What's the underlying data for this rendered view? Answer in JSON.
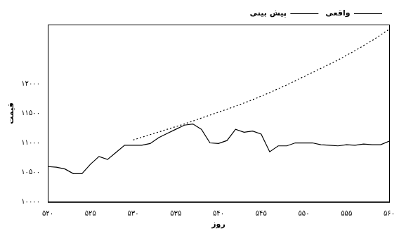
{
  "chart_data": {
    "type": "line",
    "x_label": "روز",
    "y_label": "قیمت",
    "x": [
      520,
      521,
      522,
      523,
      524,
      525,
      526,
      527,
      528,
      529,
      530,
      531,
      532,
      533,
      534,
      535,
      536,
      537,
      538,
      539,
      540,
      541,
      542,
      543,
      544,
      545,
      546,
      547,
      548,
      549,
      550,
      551,
      552,
      553,
      554,
      555,
      556,
      557,
      558,
      559,
      560
    ],
    "series": [
      {
        "name": "واقعی",
        "color": "#000000",
        "line_style": "solid",
        "values": [
          10600,
          10590,
          10560,
          10480,
          10480,
          10640,
          10770,
          10720,
          10840,
          10960,
          10960,
          10960,
          10990,
          11090,
          11160,
          11230,
          11300,
          11320,
          11230,
          11000,
          10990,
          11040,
          11230,
          11180,
          11200,
          11150,
          10850,
          10950,
          10950,
          11000,
          11000,
          11000,
          10970,
          10960,
          10950,
          10970,
          10960,
          10980,
          10970,
          10970,
          11030
        ]
      },
      {
        "name": "پیش بینی",
        "color": "#000000",
        "line_style": "dotted",
        "values": [
          null,
          null,
          null,
          null,
          null,
          null,
          null,
          null,
          null,
          null,
          11050,
          11095,
          11140,
          11185,
          11230,
          11275,
          11320,
          11370,
          11420,
          11470,
          11520,
          11570,
          11620,
          11675,
          11730,
          11790,
          11850,
          11915,
          11980,
          12050,
          12120,
          12190,
          12260,
          12330,
          12400,
          12480,
          12560,
          12645,
          12730,
          12825,
          12920
        ]
      }
    ],
    "xlim": [
      520,
      560
    ],
    "xticks": [
      {
        "value": 520,
        "label": "۵۲۰"
      },
      {
        "value": 525,
        "label": "۵۲۵"
      },
      {
        "value": 530,
        "label": "۵۳۰"
      },
      {
        "value": 535,
        "label": "۵۳۵"
      },
      {
        "value": 540,
        "label": "۵۴۰"
      },
      {
        "value": 545,
        "label": "۵۴۵"
      },
      {
        "value": 550,
        "label": "۵۵۰"
      },
      {
        "value": 555,
        "label": "۵۵۵"
      },
      {
        "value": 560,
        "label": "۵۶۰"
      }
    ],
    "ylim": [
      10000,
      13000
    ],
    "yticks": [
      {
        "value": 10000,
        "label": "۱۰۰۰۰"
      },
      {
        "value": 10500,
        "label": "۱۰۵۰۰"
      },
      {
        "value": 11000,
        "label": "۱۱۰۰۰"
      },
      {
        "value": 11500,
        "label": "۱۱۵۰۰"
      },
      {
        "value": 12000,
        "label": "۱۲۰۰۰"
      }
    ],
    "grid": false,
    "legend": "upper left"
  }
}
